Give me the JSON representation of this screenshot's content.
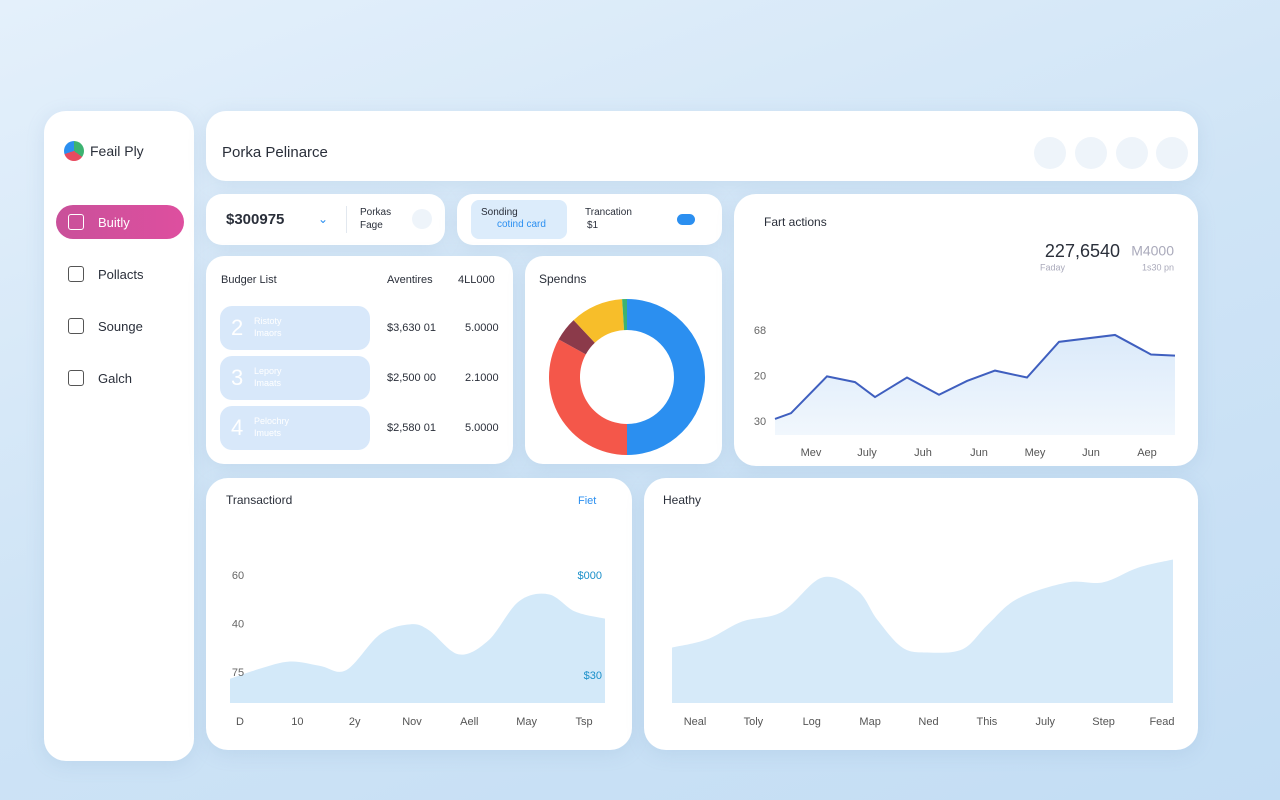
{
  "sidebar": {
    "brand": "Feail Ply",
    "nav": [
      "Buitly",
      "Pollacts",
      "Sounge",
      "Galch"
    ]
  },
  "header": {
    "title": "Porka Pelinarce"
  },
  "balance_card": {
    "amount": "$300975",
    "label_1": "Porkas",
    "label_2": "Fage"
  },
  "spending_card": {
    "title": "Sonding",
    "tag": "cotind card",
    "label": "Trancation",
    "value": "$1"
  },
  "budget": {
    "title": "Budger List",
    "col_1": "Aventires",
    "col_2": "4LL000",
    "rows": [
      {
        "index": "2",
        "name": "Ristoty",
        "sub": "Imaors",
        "amount": "$3,630 01",
        "share": "5.0000"
      },
      {
        "index": "3",
        "name": "Lepory",
        "sub": "Imaats",
        "amount": "$2,500 00",
        "share": "2.1000"
      },
      {
        "index": "4",
        "name": "Pelochry",
        "sub": "Imuets",
        "amount": "$2,580 01",
        "share": "5.0000"
      }
    ]
  },
  "chart_data": [
    {
      "type": "donut",
      "title": "Spendns",
      "values": [
        50,
        33,
        5,
        11,
        1
      ],
      "colors": [
        "#2b8ff0",
        "#f4574a",
        "#8b3a4a",
        "#f7be2a",
        "#3cb371"
      ]
    },
    {
      "type": "line",
      "title": "Fart actions",
      "headline": "227,6540",
      "headline_note": "M4000",
      "caption_left": "Faday",
      "caption_right": "1s30 pn",
      "y_labels": [
        "68",
        "20",
        "30"
      ],
      "categories": [
        "Mev",
        "July",
        "Juh",
        "Jun",
        "Mey",
        "Jun",
        "Aep"
      ],
      "x": [
        0,
        4,
        13,
        20,
        25,
        33,
        41,
        48,
        55,
        63,
        71,
        85,
        94,
        100
      ],
      "values": [
        14,
        19,
        51,
        46,
        33,
        50,
        35,
        47,
        56,
        50,
        81,
        87,
        70,
        69
      ],
      "xlim": [
        0,
        100
      ],
      "ylim": [
        0,
        100
      ],
      "color": "#3f5fbf"
    },
    {
      "type": "area",
      "title": "Transactiord",
      "filter": "Fiet",
      "y_labels": [
        "60",
        "40",
        "75"
      ],
      "right_labels": [
        "$000",
        "$30"
      ],
      "categories": [
        "D",
        "10",
        "2y",
        "Nov",
        "Aell",
        "May",
        "Tsp"
      ],
      "x": [
        0,
        8,
        16,
        24,
        31,
        40,
        48,
        53,
        61,
        69,
        77,
        85,
        92,
        100
      ],
      "values": [
        17,
        24,
        29,
        26,
        23,
        48,
        55,
        51,
        34,
        44,
        71,
        76,
        64,
        59
      ],
      "xlim": [
        0,
        100
      ],
      "ylim": [
        0,
        100
      ],
      "color": "#cbe5f8"
    },
    {
      "type": "area",
      "title": "Heathy",
      "categories": [
        "Neal",
        "Toly",
        "Log",
        "Map",
        "Ned",
        "This",
        "July",
        "Step",
        "Fead"
      ],
      "x": [
        0,
        7,
        14,
        22,
        30,
        37,
        41,
        46,
        51,
        58,
        63,
        69,
        79,
        86,
        93,
        100
      ],
      "values": [
        34,
        39,
        50,
        56,
        77,
        69,
        51,
        34,
        31,
        33,
        48,
        64,
        74,
        74,
        83,
        88
      ],
      "xlim": [
        0,
        100
      ],
      "ylim": [
        0,
        100
      ],
      "color": "#cfe6f8"
    }
  ]
}
